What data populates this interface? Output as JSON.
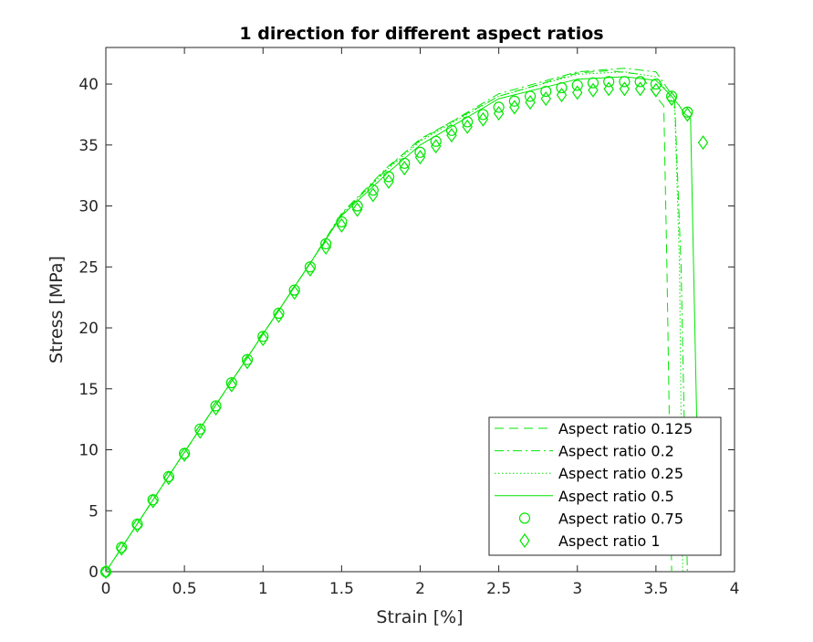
{
  "chart_data": {
    "type": "line",
    "title": "1 direction for different aspect ratios",
    "xlabel": "Strain [%]",
    "ylabel": "Stress [MPa]",
    "xlim": [
      0,
      4
    ],
    "ylim": [
      0,
      43
    ],
    "xticks": [
      0,
      0.5,
      1,
      1.5,
      2,
      2.5,
      3,
      3.5,
      4
    ],
    "yticks": [
      0,
      5,
      10,
      15,
      20,
      25,
      30,
      35,
      40
    ],
    "xtick_labels": [
      "0",
      "0.5",
      "1",
      "1.5",
      "2",
      "2.5",
      "3",
      "3.5",
      "4"
    ],
    "ytick_labels": [
      "0",
      "5",
      "10",
      "15",
      "20",
      "25",
      "30",
      "35",
      "40"
    ],
    "grid": false,
    "legend_position": "bottom-right",
    "color": "#00e600",
    "series": [
      {
        "name": "Aspect ratio 0.125",
        "style": "dashed",
        "x": [
          0,
          0.5,
          1.0,
          1.3,
          1.5,
          1.8,
          2.0,
          2.5,
          3.0,
          3.2,
          3.4,
          3.5,
          3.55,
          3.57,
          3.6
        ],
        "y": [
          0,
          9.8,
          19.5,
          25.3,
          29.3,
          33.2,
          35.5,
          39.0,
          40.9,
          41.1,
          40.8,
          39.0,
          38.2,
          25,
          0
        ]
      },
      {
        "name": "Aspect ratio 0.2",
        "style": "dashdot",
        "x": [
          0,
          0.5,
          1.0,
          1.3,
          1.5,
          1.8,
          2.0,
          2.5,
          3.0,
          3.3,
          3.5,
          3.58,
          3.62,
          3.66,
          3.7
        ],
        "y": [
          0,
          9.8,
          19.5,
          25.3,
          29.4,
          33.3,
          35.4,
          39.2,
          41.0,
          41.3,
          41.0,
          39.5,
          38.5,
          25,
          0
        ]
      },
      {
        "name": "Aspect ratio 0.25",
        "style": "dotted",
        "x": [
          0,
          0.5,
          1.0,
          1.3,
          1.5,
          1.8,
          2.0,
          2.5,
          3.0,
          3.3,
          3.5,
          3.58,
          3.62,
          3.65,
          3.67
        ],
        "y": [
          0,
          9.8,
          19.5,
          25.3,
          29.3,
          33.1,
          35.3,
          39.0,
          40.8,
          41.0,
          40.6,
          39.2,
          38.0,
          25,
          0
        ]
      },
      {
        "name": "Aspect ratio 0.5",
        "style": "solid",
        "x": [
          0,
          0.5,
          1.0,
          1.3,
          1.5,
          1.8,
          2.0,
          2.5,
          3.0,
          3.3,
          3.5,
          3.6,
          3.65,
          3.68,
          3.72,
          3.76
        ],
        "y": [
          0,
          9.8,
          19.5,
          25.3,
          29.2,
          32.8,
          35.0,
          38.8,
          40.4,
          40.6,
          40.3,
          39.0,
          38.2,
          37.6,
          37.2,
          12
        ]
      },
      {
        "name": "Aspect ratio 0.75",
        "style": "circle",
        "x": [
          0,
          0.1,
          0.2,
          0.3,
          0.4,
          0.5,
          0.6,
          0.7,
          0.8,
          0.9,
          1.0,
          1.1,
          1.2,
          1.3,
          1.4,
          1.5,
          1.6,
          1.7,
          1.8,
          1.9,
          2.0,
          2.1,
          2.2,
          2.3,
          2.4,
          2.5,
          2.6,
          2.7,
          2.8,
          2.9,
          3.0,
          3.1,
          3.2,
          3.3,
          3.4,
          3.5,
          3.6,
          3.7
        ],
        "y": [
          0,
          2.0,
          3.9,
          5.9,
          7.8,
          9.7,
          11.7,
          13.6,
          15.5,
          17.4,
          19.3,
          21.2,
          23.1,
          25.0,
          26.9,
          28.7,
          30.0,
          31.3,
          32.4,
          33.5,
          34.4,
          35.3,
          36.2,
          36.9,
          37.5,
          38.1,
          38.6,
          39.0,
          39.4,
          39.7,
          39.9,
          40.1,
          40.2,
          40.2,
          40.2,
          40.0,
          39.0,
          37.7
        ]
      },
      {
        "name": "Aspect ratio 1",
        "style": "diamond",
        "x": [
          0,
          0.1,
          0.2,
          0.3,
          0.4,
          0.5,
          0.6,
          0.7,
          0.8,
          0.9,
          1.0,
          1.1,
          1.2,
          1.3,
          1.4,
          1.5,
          1.6,
          1.7,
          1.8,
          1.9,
          2.0,
          2.1,
          2.2,
          2.3,
          2.4,
          2.5,
          2.6,
          2.7,
          2.8,
          2.9,
          3.0,
          3.1,
          3.2,
          3.3,
          3.4,
          3.5,
          3.6,
          3.7,
          3.8
        ],
        "y": [
          0,
          1.9,
          3.8,
          5.8,
          7.7,
          9.6,
          11.5,
          13.4,
          15.3,
          17.2,
          19.1,
          21.0,
          22.9,
          24.8,
          26.6,
          28.4,
          29.7,
          30.9,
          32.0,
          33.1,
          34.0,
          34.9,
          35.8,
          36.5,
          37.1,
          37.6,
          38.1,
          38.5,
          38.8,
          39.1,
          39.3,
          39.5,
          39.6,
          39.6,
          39.6,
          39.5,
          38.8,
          37.5,
          35.2
        ]
      }
    ]
  }
}
